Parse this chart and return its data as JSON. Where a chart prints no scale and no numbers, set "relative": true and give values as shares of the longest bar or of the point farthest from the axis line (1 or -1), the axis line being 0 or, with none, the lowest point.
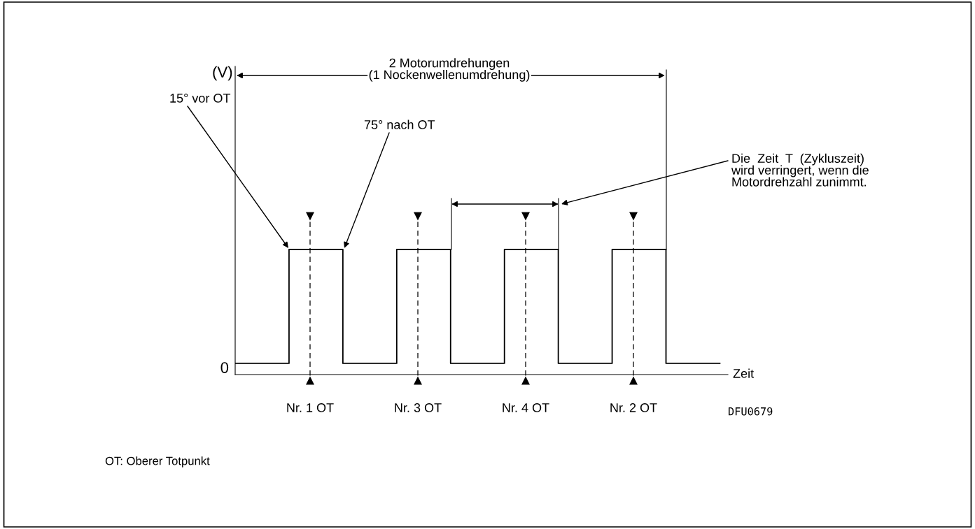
{
  "chart_data": {
    "type": "step",
    "relative": true,
    "xlabel": "Zeit",
    "categories": [
      null,
      null,
      null,
      null,
      null,
      null,
      null,
      null,
      null,
      null
    ],
    "values": [
      0.09,
      1,
      0.09,
      1,
      0.09,
      1,
      0.09,
      1,
      0.09,
      0.09
    ],
    "color": "#000000",
    "annotations": [
      "(V)",
      "2 Motorumdrehungen\n(1 Nockenwellenumdrehung)",
      "Die  Zeit  T  (Zykluszeit)\nwird verringert, wenn die\nMotordrehzahl zunimmt.",
      "15° vor OT",
      "75° nach OT",
      "Nr. 1 OT",
      "Nr. 3 OT",
      "Nr. 4 OT",
      "Nr. 2 OT",
      "0",
      "DFU0679",
      "OT: Oberer Totpunkt"
    ]
  }
}
